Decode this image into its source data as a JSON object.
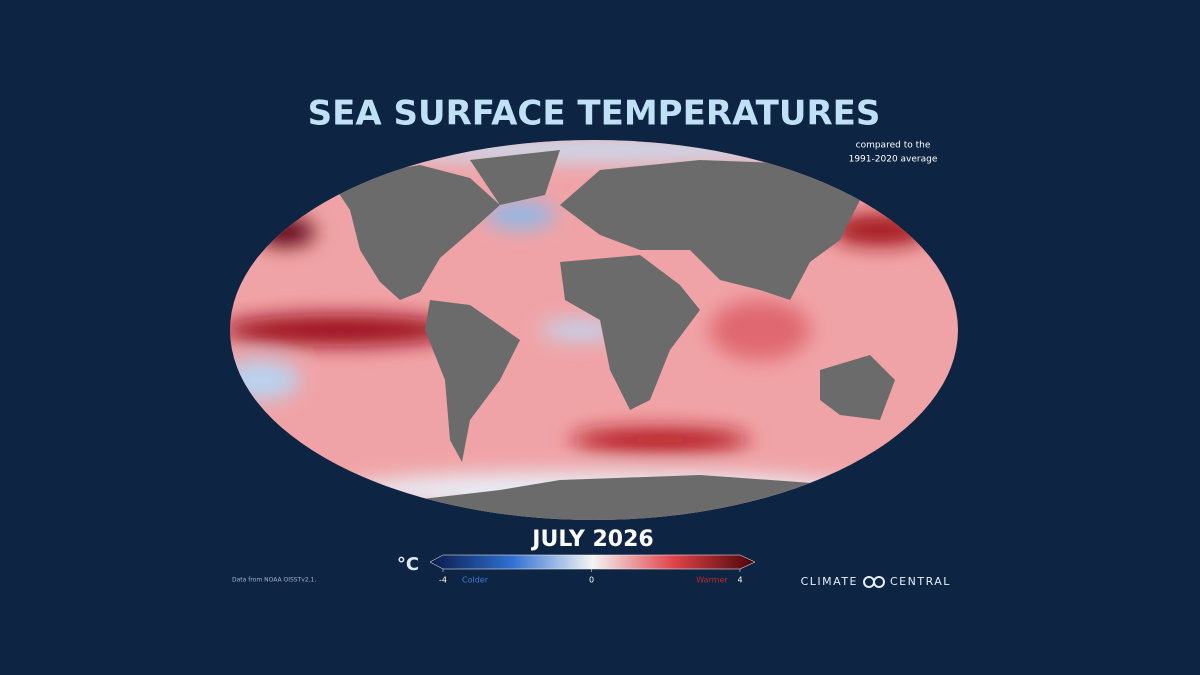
{
  "title": "SEA SURFACE TEMPERATURES",
  "subtitle": [
    "compared to the",
    "1991-2020 average"
  ],
  "date": "JULY 2026",
  "colorbar": {
    "unit": "°C",
    "lim": [
      -4,
      4
    ],
    "ticks": [
      -4,
      0,
      4
    ],
    "colder_label": "Colder",
    "warmer_label": "Warmer"
  },
  "source": "Data from NOAA OISSTv2.1.",
  "logo": [
    "CLIMATE",
    "CENTRAL"
  ]
}
